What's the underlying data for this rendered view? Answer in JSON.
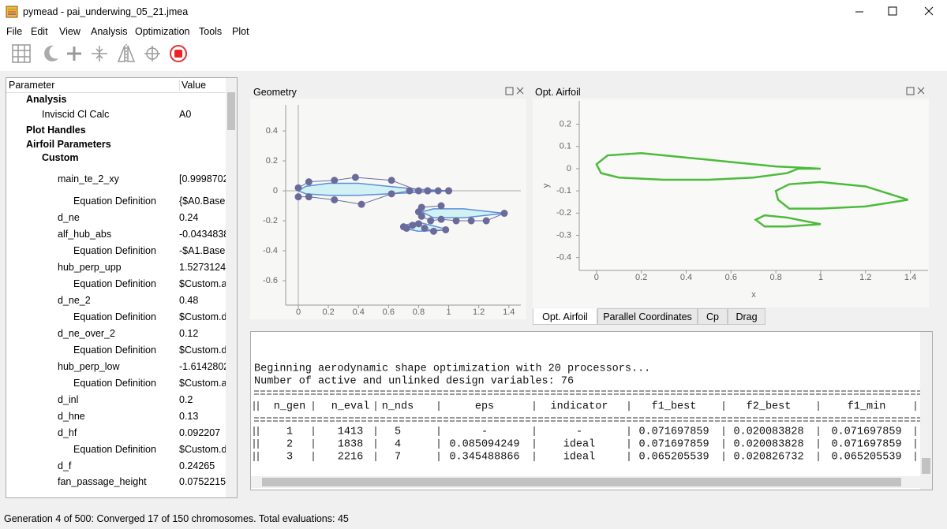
{
  "window": {
    "title": "pymead - pai_underwing_05_21.jmea"
  },
  "menu": [
    "File",
    "Edit",
    "View",
    "Analysis",
    "Optimization",
    "Tools",
    "Plot"
  ],
  "tree": {
    "headers": [
      "Parameter",
      "Value"
    ],
    "rows": [
      [
        "Analysis"
      ],
      [
        "Inviscid Cl Calc",
        "A0"
      ],
      [
        "Plot Handles"
      ],
      [
        "Airfoil Parameters"
      ],
      [
        "Custom"
      ],
      [
        "main_te_2_xy",
        "[0.9998702"
      ],
      [
        "Equation Definition",
        "{$A0.Base."
      ],
      [
        "d_ne",
        "0.24"
      ],
      [
        "alf_hub_abs",
        "-0.0434838"
      ],
      [
        "Equation Definition",
        "-$A1.Base.a"
      ],
      [
        "hub_perp_upp",
        "1.5273124"
      ],
      [
        "Equation Definition",
        "$Custom.alf"
      ],
      [
        "d_ne_2",
        "0.48"
      ],
      [
        "Equation Definition",
        "$Custom.d_"
      ],
      [
        "d_ne_over_2",
        "0.12"
      ],
      [
        "Equation Definition",
        "$Custom.d_"
      ],
      [
        "hub_perp_low",
        "-1.6142802"
      ],
      [
        "Equation Definition",
        "$Custom.alf"
      ],
      [
        "d_inl",
        "0.2"
      ],
      [
        "d_hne",
        "0.13"
      ],
      [
        "d_hf",
        "0.092207"
      ],
      [
        "Equation Definition",
        "$Custom.d_"
      ],
      [
        "d_f",
        "0.24265"
      ],
      [
        "fan_passage_height",
        "0.0752215"
      ]
    ]
  },
  "chart_data": [
    {
      "type": "line",
      "title": "Geometry",
      "xlim": [
        -0.084,
        1.48
      ],
      "ylim": [
        -0.763,
        0.574
      ],
      "xticks": [
        0,
        0.2,
        0.4,
        0.6,
        0.8,
        1,
        1.2,
        1.4
      ],
      "yticks": [
        -0.6,
        -0.4,
        -0.2,
        0,
        0.2,
        0.4
      ],
      "zero_lines": true,
      "series": [
        {
          "color": "#5b8fd8",
          "fill": "#d2f1f4",
          "x": [
            0,
            0.05,
            0.2,
            0.4,
            0.6,
            0.8,
            1.0,
            0.8,
            0.6,
            0.4,
            0.2,
            0.05,
            0
          ],
          "y": [
            0,
            0.03,
            0.05,
            0.05,
            0.03,
            0.01,
            0,
            -0.01,
            -0.02,
            -0.03,
            -0.03,
            -0.02,
            0
          ]
        },
        {
          "color": "#5b8fd8",
          "fill": "#d2f1f4",
          "x": [
            0.82,
            0.9,
            1.1,
            1.37,
            1.1,
            0.9,
            0.82
          ],
          "y": [
            -0.14,
            -0.12,
            -0.12,
            -0.15,
            -0.18,
            -0.18,
            -0.14
          ]
        },
        {
          "color": "#5b8fd8",
          "fill": "#d2f1f4",
          "x": [
            0.7,
            0.8,
            1.0,
            0.8,
            0.7
          ],
          "y": [
            -0.23,
            -0.21,
            -0.26,
            -0.27,
            -0.25
          ]
        },
        {
          "color": "#6b6b9b",
          "marker": true,
          "x": [
            0,
            0.07,
            0.24,
            0.38,
            0.62,
            0.8,
            0.86,
            0.93,
            1.0
          ],
          "y": [
            0.02,
            0.06,
            0.07,
            0.09,
            0.07,
            0,
            0,
            0,
            0
          ]
        },
        {
          "color": "#6b6b9b",
          "marker": true,
          "x": [
            0,
            0.07,
            0.24,
            0.42,
            0.62,
            0.74,
            0.86,
            1.0
          ],
          "y": [
            -0.04,
            -0.04,
            -0.06,
            -0.09,
            -0.02,
            0,
            0,
            0
          ]
        },
        {
          "color": "#6b6b9b",
          "marker": true,
          "x": [
            0.95,
            0.82,
            0.8,
            0.82,
            0.88,
            0.95,
            1.05,
            1.15,
            1.25,
            1.37
          ],
          "y": [
            -0.1,
            -0.11,
            -0.14,
            -0.17,
            -0.2,
            -0.19,
            -0.2,
            -0.2,
            -0.2,
            -0.15
          ]
        },
        {
          "color": "#6b6b9b",
          "marker": true,
          "x": [
            0.7,
            0.72,
            0.76,
            0.8,
            0.84,
            0.9,
            0.98
          ],
          "y": [
            -0.24,
            -0.25,
            -0.23,
            -0.22,
            -0.25,
            -0.27,
            -0.26
          ]
        }
      ]
    },
    {
      "type": "line",
      "title": "Opt. Airfoil",
      "xlabel": "x",
      "ylabel": "y",
      "xlim": [
        -0.077,
        1.479
      ],
      "ylim": [
        -0.458,
        0.305
      ],
      "xticks": [
        0,
        0.2,
        0.4,
        0.6,
        0.8,
        1,
        1.2,
        1.4
      ],
      "yticks": [
        -0.4,
        -0.3,
        -0.2,
        -0.1,
        0,
        0.1,
        0.2
      ],
      "series": [
        {
          "color": "#4cbb3c",
          "x": [
            1.0,
            0.8,
            0.6,
            0.4,
            0.2,
            0.05,
            0.0,
            0.02,
            0.1,
            0.3,
            0.5,
            0.7,
            0.85,
            0.9,
            0.95,
            1.0
          ],
          "y": [
            0.0,
            0.01,
            0.03,
            0.05,
            0.07,
            0.06,
            0.02,
            -0.02,
            -0.04,
            -0.05,
            -0.05,
            -0.04,
            -0.02,
            0.0,
            0.0,
            0.0
          ]
        },
        {
          "color": "#4cbb3c",
          "x": [
            1.39,
            1.2,
            1.0,
            0.86,
            0.8,
            0.81,
            0.86,
            1.0,
            1.2,
            1.39
          ],
          "y": [
            -0.14,
            -0.08,
            -0.06,
            -0.07,
            -0.1,
            -0.14,
            -0.18,
            -0.18,
            -0.17,
            -0.14
          ]
        },
        {
          "color": "#4cbb3c",
          "x": [
            1.0,
            0.85,
            0.75,
            0.71,
            0.75,
            0.85,
            1.0
          ],
          "y": [
            -0.25,
            -0.22,
            -0.21,
            -0.23,
            -0.26,
            -0.26,
            -0.25
          ]
        }
      ]
    }
  ],
  "tabs": [
    "Opt. Airfoil",
    "Parallel Coordinates",
    "Cp",
    "Drag"
  ],
  "console": {
    "lines": [
      "Beginning aerodynamic shape optimization with 20 processors...",
      "Number of active and unlinked design variables: 76"
    ],
    "header": [
      "n_gen",
      "n_eval",
      "n_nds",
      "eps",
      "indicator",
      "f1_best",
      "f2_best",
      "f1_min"
    ],
    "rows": [
      [
        "1",
        "1413",
        "5",
        "-",
        "-",
        "0.071697859",
        "0.020083828",
        "0.071697859"
      ],
      [
        "2",
        "1838",
        "4",
        "0.085094249",
        "ideal",
        "0.071697859",
        "0.020083828",
        "0.071697859"
      ],
      [
        "3",
        "2216",
        "7",
        "0.345488866",
        "ideal",
        "0.065205539",
        "0.020826732",
        "0.065205539"
      ]
    ]
  },
  "status": "Generation 4 of 500: Converged 17 of 150 chromosomes. Total evaluations: 45"
}
